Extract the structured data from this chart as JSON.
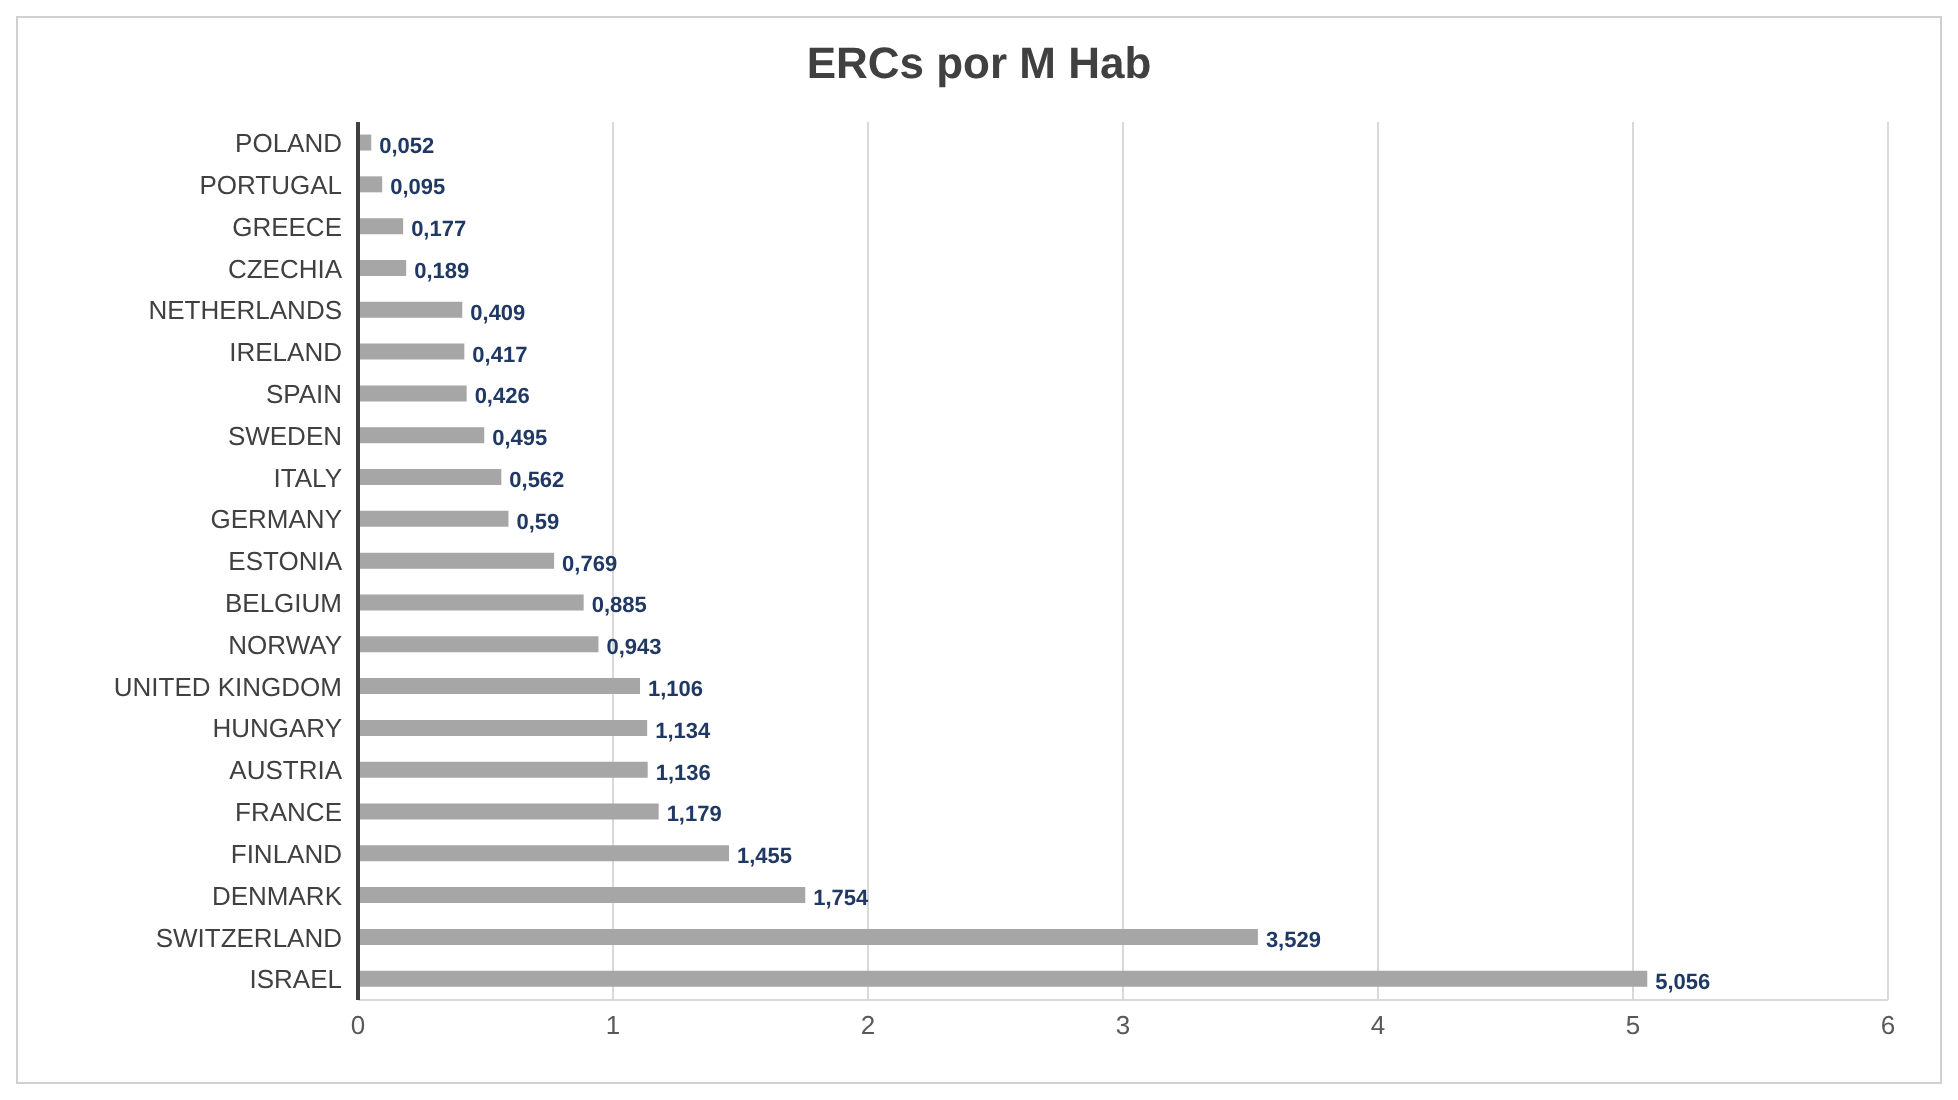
{
  "chart_data": {
    "type": "bar",
    "orientation": "horizontal",
    "title": "ERCs por M Hab",
    "categories": [
      "POLAND",
      "PORTUGAL",
      "GREECE",
      "CZECHIA",
      "NETHERLANDS",
      "IRELAND",
      "SPAIN",
      "SWEDEN",
      "ITALY",
      "GERMANY",
      "ESTONIA",
      "BELGIUM",
      "NORWAY",
      "UNITED KINGDOM",
      "HUNGARY",
      "AUSTRIA",
      "FRANCE",
      "FINLAND",
      "DENMARK",
      "SWITZERLAND",
      "ISRAEL"
    ],
    "values": [
      0.052,
      0.095,
      0.177,
      0.189,
      0.409,
      0.417,
      0.426,
      0.495,
      0.562,
      0.59,
      0.769,
      0.885,
      0.943,
      1.106,
      1.134,
      1.136,
      1.179,
      1.455,
      1.754,
      3.529,
      5.056
    ],
    "value_labels": [
      "0,052",
      "0,095",
      "0,177",
      "0,189",
      "0,409",
      "0,417",
      "0,426",
      "0,495",
      "0,562",
      "0,59",
      "0,769",
      "0,885",
      "0,943",
      "1,106",
      "1,134",
      "1,136",
      "1,179",
      "1,455",
      "1,754",
      "3,529",
      "5,056"
    ],
    "color": "#a6a6a6",
    "xlim": [
      0,
      6
    ],
    "xticks": [
      0,
      1,
      2,
      3,
      4,
      5,
      6
    ],
    "grid": "x"
  }
}
